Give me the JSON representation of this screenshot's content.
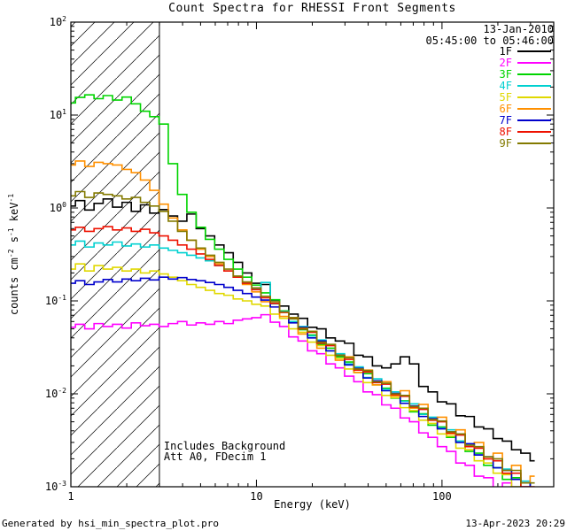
{
  "title": "Count Spectra for RHESSI Front Segments",
  "header": {
    "date": "13-Jan-2010",
    "time_range": "05:45:00 to 05:46:00"
  },
  "footer": {
    "generated_by": "Generated by hsi_min_spectra_plot.pro",
    "timestamp": "13-Apr-2023 20:29"
  },
  "chart_data": {
    "type": "line",
    "title": "Count Spectra for RHESSI Front Segments",
    "xlabel": "Energy (keV)",
    "ylabel": "counts cm-2 s-1 keV-1",
    "ylabel_rich": [
      [
        "counts cm",
        0
      ],
      [
        "-2",
        1
      ],
      [
        " s",
        0
      ],
      [
        "-1",
        1
      ],
      [
        " keV",
        0
      ],
      [
        "-1",
        1
      ]
    ],
    "xscale": "log",
    "yscale": "log",
    "xlim": [
      1,
      400
    ],
    "ylim": [
      0.001,
      100
    ],
    "x_major_ticks": [
      1,
      10,
      100
    ],
    "y_decades": [
      -3,
      -2,
      -1,
      0,
      1,
      2
    ],
    "legend_position": "top-right",
    "grid": false,
    "annotations": [
      "Includes Background",
      "Att A0, FDecim 1"
    ],
    "hatch_region": {
      "x0": 1,
      "x1": 3
    },
    "x": [
      1.0,
      1.12,
      1.26,
      1.41,
      1.58,
      1.78,
      2.0,
      2.24,
      2.51,
      2.82,
      3.16,
      3.55,
      3.98,
      4.47,
      5.01,
      5.62,
      6.31,
      7.08,
      7.94,
      8.91,
      10.0,
      11.2,
      12.6,
      14.1,
      15.8,
      17.8,
      20.0,
      22.4,
      25.1,
      28.2,
      31.6,
      35.5,
      39.8,
      44.7,
      50.1,
      56.2,
      63.1,
      70.8,
      79.4,
      89.1,
      100,
      112,
      126,
      141,
      158,
      178,
      200,
      224,
      251,
      282,
      316
    ],
    "series": [
      {
        "name": "1F",
        "color": "#000000",
        "values": [
          1.05,
          1.2,
          0.95,
          1.12,
          1.25,
          1.02,
          1.15,
          0.92,
          1.08,
          0.88,
          0.96,
          0.82,
          0.72,
          0.86,
          0.6,
          0.5,
          0.4,
          0.33,
          0.26,
          0.2,
          0.155,
          0.15,
          0.102,
          0.088,
          0.072,
          0.065,
          0.052,
          0.05,
          0.04,
          0.037,
          0.035,
          0.026,
          0.025,
          0.02,
          0.019,
          0.021,
          0.025,
          0.021,
          0.012,
          0.0105,
          0.0082,
          0.0078,
          0.0058,
          0.0057,
          0.0044,
          0.0042,
          0.0033,
          0.0031,
          0.0025,
          0.0023,
          0.0019
        ]
      },
      {
        "name": "2F",
        "color": "#ff00ff",
        "values": [
          0.052,
          0.056,
          0.05,
          0.057,
          0.053,
          0.056,
          0.051,
          0.058,
          0.054,
          0.056,
          0.053,
          0.057,
          0.06,
          0.055,
          0.058,
          0.056,
          0.06,
          0.057,
          0.062,
          0.064,
          0.066,
          0.071,
          0.059,
          0.053,
          0.041,
          0.037,
          0.029,
          0.027,
          0.021,
          0.019,
          0.0155,
          0.0135,
          0.0105,
          0.0098,
          0.0076,
          0.007,
          0.0055,
          0.005,
          0.0038,
          0.0034,
          0.0027,
          0.0024,
          0.0018,
          0.0017,
          0.0013,
          0.00125,
          0.00095,
          0.0011,
          0.00085,
          0.001,
          0.0008
        ]
      },
      {
        "name": "3F",
        "color": "#00d400",
        "values": [
          13.5,
          15.5,
          16.5,
          15.0,
          16.2,
          14.5,
          15.6,
          13.2,
          11.0,
          9.6,
          8.0,
          3.0,
          1.4,
          0.9,
          0.62,
          0.46,
          0.36,
          0.28,
          0.22,
          0.18,
          0.148,
          0.122,
          0.103,
          0.078,
          0.064,
          0.049,
          0.043,
          0.034,
          0.031,
          0.025,
          0.022,
          0.017,
          0.0165,
          0.0125,
          0.0115,
          0.009,
          0.0084,
          0.0064,
          0.0061,
          0.0046,
          0.0044,
          0.0034,
          0.0031,
          0.0024,
          0.0023,
          0.0017,
          0.0016,
          0.0012,
          0.00125,
          0.00095,
          0.0009
        ]
      },
      {
        "name": "4F",
        "color": "#00d0d0",
        "values": [
          0.4,
          0.44,
          0.38,
          0.42,
          0.4,
          0.43,
          0.39,
          0.41,
          0.38,
          0.4,
          0.37,
          0.35,
          0.33,
          0.31,
          0.29,
          0.27,
          0.24,
          0.21,
          0.18,
          0.155,
          0.135,
          0.158,
          0.093,
          0.077,
          0.06,
          0.053,
          0.042,
          0.038,
          0.029,
          0.027,
          0.021,
          0.0195,
          0.015,
          0.0145,
          0.0112,
          0.0105,
          0.0083,
          0.0078,
          0.006,
          0.0056,
          0.0043,
          0.0041,
          0.0031,
          0.0029,
          0.0022,
          0.0021,
          0.0016,
          0.00155,
          0.0012,
          0.00115,
          0.00095
        ]
      },
      {
        "name": "5F",
        "color": "#e0d800",
        "values": [
          0.22,
          0.25,
          0.21,
          0.24,
          0.22,
          0.23,
          0.21,
          0.22,
          0.2,
          0.21,
          0.195,
          0.18,
          0.165,
          0.15,
          0.14,
          0.13,
          0.12,
          0.115,
          0.105,
          0.1,
          0.092,
          0.088,
          0.072,
          0.065,
          0.05,
          0.046,
          0.036,
          0.033,
          0.026,
          0.024,
          0.0185,
          0.017,
          0.0132,
          0.0125,
          0.0096,
          0.0091,
          0.0071,
          0.0066,
          0.0052,
          0.0048,
          0.0037,
          0.0035,
          0.0026,
          0.0025,
          0.0019,
          0.0018,
          0.0014,
          0.00135,
          0.001,
          0.00095,
          0.00075
        ]
      },
      {
        "name": "6F",
        "color": "#ff9000",
        "values": [
          2.9,
          3.2,
          2.8,
          3.1,
          3.0,
          2.9,
          2.6,
          2.4,
          2.0,
          1.55,
          1.1,
          0.78,
          0.58,
          0.45,
          0.36,
          0.3,
          0.25,
          0.21,
          0.18,
          0.15,
          0.125,
          0.098,
          0.094,
          0.068,
          0.066,
          0.044,
          0.047,
          0.031,
          0.034,
          0.023,
          0.025,
          0.017,
          0.018,
          0.0125,
          0.0135,
          0.0095,
          0.0108,
          0.007,
          0.0077,
          0.0052,
          0.0056,
          0.0037,
          0.0041,
          0.0027,
          0.003,
          0.002,
          0.0023,
          0.0015,
          0.0017,
          0.0011,
          0.0013
        ]
      },
      {
        "name": "7F",
        "color": "#0000cc",
        "values": [
          0.155,
          0.165,
          0.15,
          0.16,
          0.17,
          0.16,
          0.172,
          0.165,
          0.175,
          0.168,
          0.18,
          0.172,
          0.178,
          0.17,
          0.165,
          0.158,
          0.15,
          0.14,
          0.13,
          0.12,
          0.11,
          0.102,
          0.086,
          0.076,
          0.058,
          0.052,
          0.04,
          0.037,
          0.029,
          0.026,
          0.0205,
          0.0188,
          0.0148,
          0.0138,
          0.0108,
          0.0101,
          0.0079,
          0.0074,
          0.0057,
          0.0054,
          0.0042,
          0.0039,
          0.003,
          0.0029,
          0.0022,
          0.0021,
          0.0016,
          0.0015,
          0.0012,
          0.0011,
          0.0009
        ]
      },
      {
        "name": "8F",
        "color": "#ee1100",
        "values": [
          0.58,
          0.62,
          0.56,
          0.6,
          0.63,
          0.58,
          0.61,
          0.56,
          0.59,
          0.54,
          0.5,
          0.45,
          0.4,
          0.36,
          0.32,
          0.28,
          0.24,
          0.21,
          0.18,
          0.155,
          0.132,
          0.108,
          0.094,
          0.075,
          0.065,
          0.05,
          0.046,
          0.035,
          0.033,
          0.026,
          0.0235,
          0.018,
          0.0172,
          0.0132,
          0.0127,
          0.0098,
          0.0094,
          0.0072,
          0.0068,
          0.0052,
          0.005,
          0.0038,
          0.0036,
          0.0027,
          0.0026,
          0.002,
          0.0019,
          0.0014,
          0.0014,
          0.001,
          0.001
        ]
      },
      {
        "name": "9F",
        "color": "#837a00",
        "values": [
          1.35,
          1.5,
          1.3,
          1.45,
          1.4,
          1.35,
          1.25,
          1.3,
          1.15,
          1.05,
          0.92,
          0.72,
          0.56,
          0.45,
          0.37,
          0.31,
          0.26,
          0.22,
          0.185,
          0.16,
          0.138,
          0.112,
          0.098,
          0.076,
          0.066,
          0.051,
          0.047,
          0.036,
          0.034,
          0.026,
          0.0245,
          0.0185,
          0.0178,
          0.0135,
          0.013,
          0.01,
          0.0096,
          0.0073,
          0.007,
          0.0053,
          0.0051,
          0.0039,
          0.0037,
          0.0028,
          0.0027,
          0.0021,
          0.002,
          0.0015,
          0.0015,
          0.0011,
          0.0011
        ]
      }
    ]
  }
}
